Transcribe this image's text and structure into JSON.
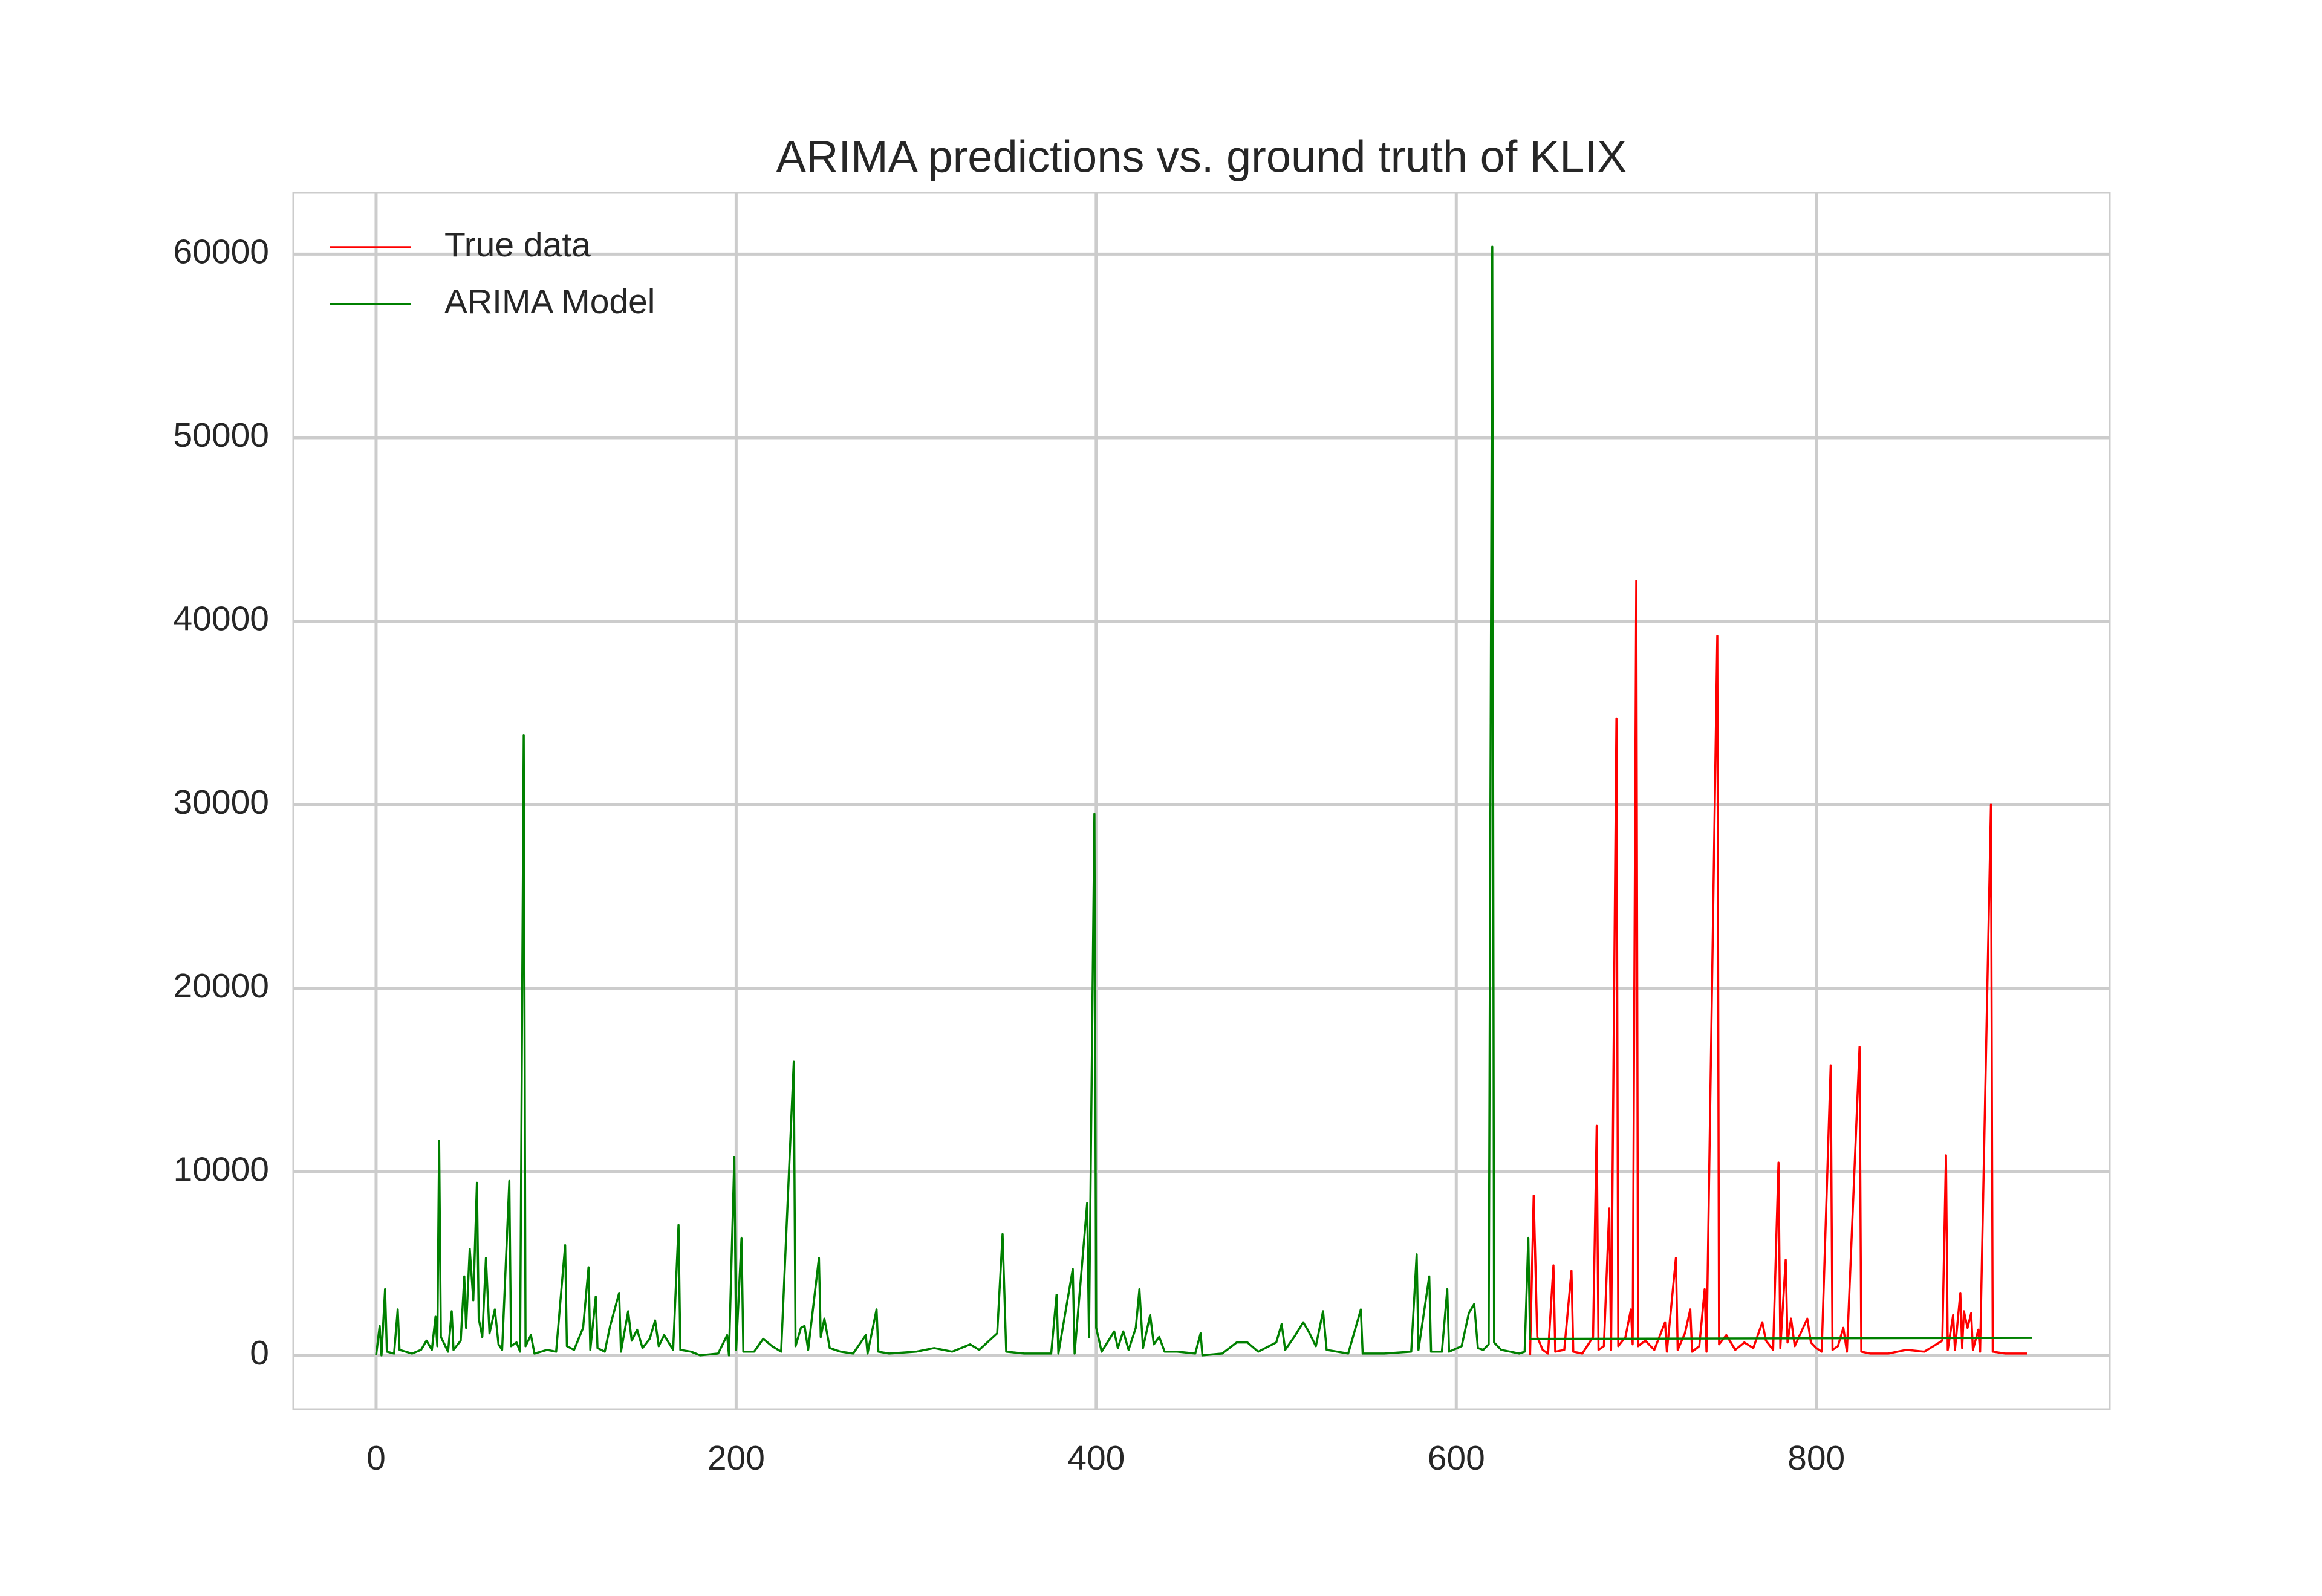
{
  "chart_data": {
    "type": "line",
    "title": "ARIMA predictions vs. ground truth of KLIX",
    "xlim": [
      -46,
      963
    ],
    "ylim": [
      -2935,
      63340
    ],
    "xticks": [
      0,
      200,
      400,
      600,
      800
    ],
    "yticks": [
      0,
      10000,
      20000,
      30000,
      40000,
      50000,
      60000
    ],
    "grid": true,
    "legend": "upper left",
    "series": [
      {
        "name": "True data",
        "color": "#ff0000",
        "x": [
          641,
          643,
          645,
          648,
          651,
          654,
          655,
          660,
          664,
          665,
          670,
          676,
          678,
          679,
          682,
          685,
          686,
          689,
          690,
          694,
          697,
          698,
          700,
          701,
          705,
          710,
          716,
          717,
          722,
          723,
          727,
          730,
          731,
          735,
          738,
          739,
          745,
          746,
          750,
          755,
          760,
          765,
          770,
          772,
          776,
          779,
          780,
          783,
          784,
          786,
          788,
          795,
          797,
          800,
          803,
          808,
          809,
          812,
          815,
          817,
          824,
          825,
          830,
          840,
          850,
          860,
          865,
          870,
          872,
          873,
          876,
          877,
          880,
          881,
          882,
          884,
          886,
          887,
          890,
          891,
          897,
          898,
          905,
          917
        ],
        "values": [
          0,
          8700,
          1000,
          300,
          100,
          4900,
          200,
          300,
          4600,
          200,
          100,
          1000,
          12500,
          300,
          500,
          8000,
          300,
          34700,
          500,
          1000,
          2500,
          600,
          42200,
          500,
          800,
          300,
          1800,
          200,
          5300,
          300,
          1200,
          2500,
          200,
          500,
          3600,
          200,
          39200,
          600,
          1100,
          300,
          700,
          400,
          1800,
          800,
          300,
          10500,
          400,
          5200,
          700,
          2000,
          500,
          2000,
          700,
          400,
          200,
          15800,
          300,
          500,
          1500,
          200,
          16800,
          200,
          100,
          100,
          300,
          200,
          500,
          800,
          10900,
          300,
          2200,
          300,
          3400,
          400,
          2400,
          1500,
          2300,
          300,
          1400,
          200,
          30000,
          200,
          100,
          100
        ]
      },
      {
        "name": "ARIMA Model",
        "color": "#008000",
        "x": [
          0,
          2,
          3,
          5,
          6,
          10,
          12,
          13,
          20,
          25,
          28,
          31,
          33,
          34,
          35,
          36,
          38,
          40,
          42,
          43,
          47,
          49,
          50,
          52,
          54,
          56,
          57,
          59,
          61,
          63,
          66,
          68,
          70,
          74,
          75,
          78,
          80,
          82,
          83,
          86,
          88,
          95,
          100,
          105,
          106,
          110,
          115,
          118,
          119,
          122,
          123,
          127,
          130,
          135,
          136,
          140,
          142,
          145,
          148,
          152,
          155,
          157,
          160,
          165,
          168,
          169,
          175,
          180,
          190,
          195,
          196,
          199,
          200,
          203,
          204,
          210,
          215,
          220,
          225,
          232,
          233,
          236,
          238,
          240,
          246,
          247,
          249,
          252,
          258,
          265,
          272,
          273,
          278,
          279,
          285,
          300,
          310,
          320,
          330,
          335,
          345,
          348,
          350,
          360,
          375,
          378,
          379,
          387,
          388,
          395,
          396,
          399,
          400,
          403,
          410,
          412,
          415,
          418,
          422,
          424,
          426,
          430,
          432,
          435,
          438,
          445,
          455,
          458,
          459,
          470,
          478,
          484,
          490,
          500,
          503,
          505,
          510,
          515,
          518,
          522,
          526,
          528,
          540,
          547,
          548,
          560,
          575,
          578,
          579,
          585,
          586,
          592,
          595,
          596,
          603,
          607,
          610,
          612,
          615,
          618,
          620,
          621,
          625,
          630,
          635,
          638,
          640,
          641,
          920
        ],
        "values": [
          0,
          1600,
          0,
          3600,
          200,
          100,
          2500,
          300,
          100,
          300,
          800,
          300,
          2100,
          500,
          11700,
          1000,
          600,
          200,
          2400,
          300,
          800,
          4300,
          1500,
          5800,
          3000,
          9400,
          2000,
          1000,
          5300,
          1200,
          2500,
          600,
          300,
          9500,
          500,
          700,
          200,
          33800,
          500,
          1100,
          100,
          300,
          200,
          6000,
          500,
          300,
          1500,
          4800,
          300,
          3200,
          400,
          200,
          1600,
          3400,
          200,
          2400,
          800,
          1400,
          400,
          900,
          1900,
          500,
          1100,
          300,
          7100,
          300,
          200,
          0,
          100,
          1100,
          0,
          10800,
          300,
          6400,
          200,
          200,
          900,
          500,
          200,
          16000,
          500,
          1500,
          1600,
          300,
          5300,
          1000,
          2000,
          400,
          200,
          100,
          1100,
          100,
          2500,
          200,
          100,
          200,
          400,
          200,
          600,
          300,
          1200,
          6600,
          200,
          100,
          100,
          3300,
          100,
          4700,
          100,
          8300,
          1000,
          29500,
          1500,
          200,
          1300,
          400,
          1300,
          300,
          1500,
          3600,
          400,
          2200,
          600,
          1000,
          200,
          200,
          100,
          1200,
          0,
          100,
          700,
          700,
          200,
          700,
          1700,
          300,
          1000,
          1800,
          1300,
          500,
          2400,
          300,
          100,
          2500,
          100,
          100,
          200,
          5500,
          300,
          4300,
          200,
          200,
          3600,
          200,
          500,
          2300,
          2800,
          400,
          300,
          600,
          60400,
          700,
          300,
          200,
          100,
          200,
          6400,
          900,
          950
        ]
      }
    ]
  }
}
